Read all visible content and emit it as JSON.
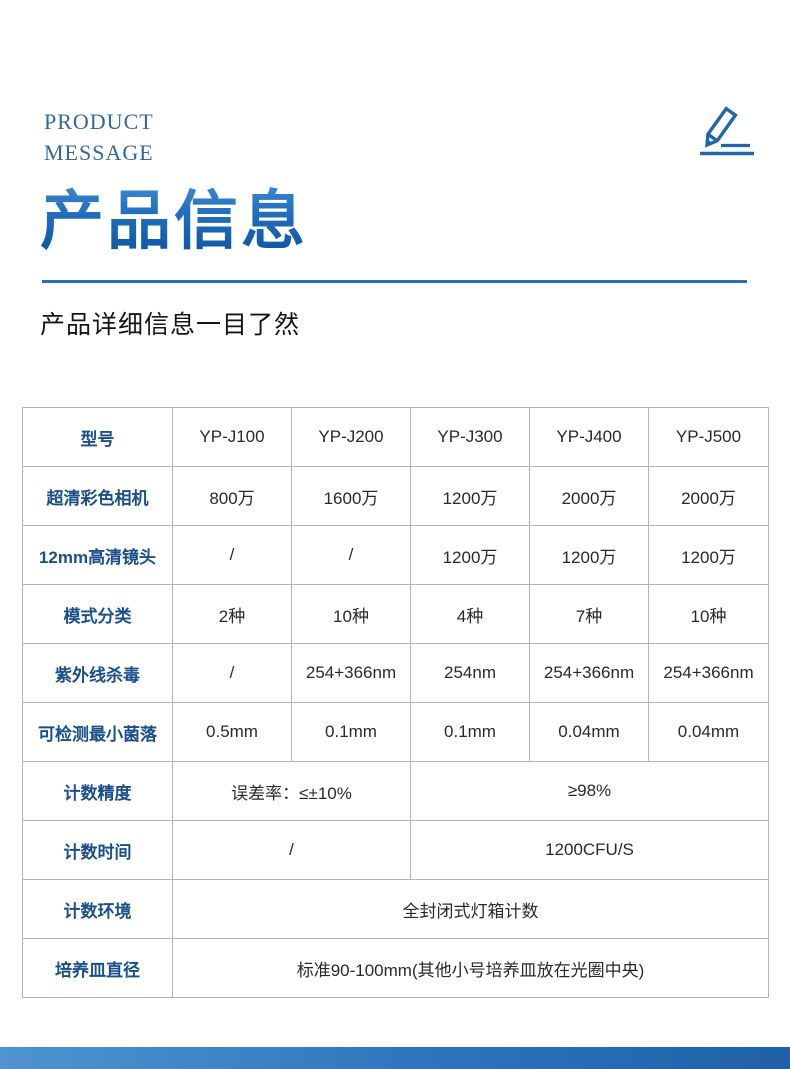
{
  "header": {
    "eyebrow_line1": "PRODUCT",
    "eyebrow_line2": "MESSAGE",
    "title": "产品信息",
    "subtitle": "产品详细信息一目了然",
    "pencil_icon": "pencil-edit-icon"
  },
  "colors": {
    "eyebrow": "#33679e",
    "title_gradient_top": "#4e95d8",
    "title_gradient_bottom": "#0b519f",
    "rule": "#2d6db3",
    "table_border": "#b3b6b8",
    "row_label": "#1a4f8a",
    "cell_text": "#2a2a2a",
    "bottom_bar": "#2d74bd"
  },
  "chart_data": {
    "type": "table",
    "title": "产品信息",
    "columns": [
      "型号",
      "YP-J100",
      "YP-J200",
      "YP-J300",
      "YP-J400",
      "YP-J500"
    ]
  },
  "table": {
    "rows": [
      {
        "label": "型号",
        "cells": [
          {
            "text": "YP-J100"
          },
          {
            "text": "YP-J200"
          },
          {
            "text": "YP-J300"
          },
          {
            "text": "YP-J400"
          },
          {
            "text": "YP-J500"
          }
        ]
      },
      {
        "label": "超清彩色相机",
        "cells": [
          {
            "text": "800万"
          },
          {
            "text": "1600万"
          },
          {
            "text": "1200万"
          },
          {
            "text": "2000万"
          },
          {
            "text": "2000万"
          }
        ]
      },
      {
        "label": "12mm高清镜头",
        "cells": [
          {
            "text": "/"
          },
          {
            "text": "/"
          },
          {
            "text": "1200万"
          },
          {
            "text": "1200万"
          },
          {
            "text": "1200万"
          }
        ]
      },
      {
        "label": "模式分类",
        "cells": [
          {
            "text": "2种"
          },
          {
            "text": "10种"
          },
          {
            "text": "4种"
          },
          {
            "text": "7种"
          },
          {
            "text": "10种"
          }
        ]
      },
      {
        "label": "紫外线杀毒",
        "cells": [
          {
            "text": "/"
          },
          {
            "text": "254+366nm"
          },
          {
            "text": "254nm"
          },
          {
            "text": "254+366nm"
          },
          {
            "text": "254+366nm"
          }
        ]
      },
      {
        "label": "可检测最小菌落",
        "cells": [
          {
            "text": "0.5mm"
          },
          {
            "text": "0.1mm"
          },
          {
            "text": "0.1mm"
          },
          {
            "text": "0.04mm"
          },
          {
            "text": "0.04mm"
          }
        ]
      },
      {
        "label": "计数精度",
        "cells": [
          {
            "text": "误差率：≤±10%",
            "span": 2
          },
          {
            "text": "≥98%",
            "span": 3
          }
        ]
      },
      {
        "label": "计数时间",
        "cells": [
          {
            "text": "/",
            "span": 2
          },
          {
            "text": "1200CFU/S",
            "span": 3
          }
        ]
      },
      {
        "label": "计数环境",
        "cells": [
          {
            "text": "全封闭式灯箱计数",
            "span": 5
          }
        ]
      },
      {
        "label": "培养皿直径",
        "cells": [
          {
            "text": "标准90-100mm(其他小号培养皿放在光圈中央)",
            "span": 5
          }
        ]
      }
    ]
  }
}
